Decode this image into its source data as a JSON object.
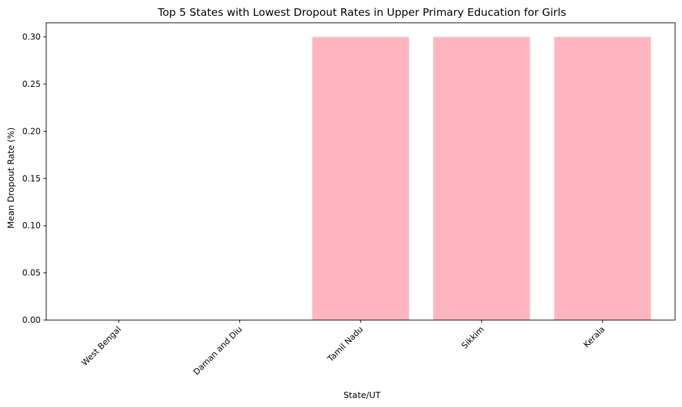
{
  "chart_data": {
    "type": "bar",
    "title": "Top 5 States with Lowest Dropout Rates in Upper Primary Education for Girls",
    "xlabel": "State/UT",
    "ylabel": "Mean Dropout Rate (%)",
    "categories": [
      "West Bengal",
      "Daman and Diu",
      "Tamil Nadu",
      "Sikkim",
      "Kerala"
    ],
    "values": [
      0.0,
      0.0,
      0.3,
      0.3,
      0.3
    ],
    "ylim": [
      0,
      0.315
    ],
    "yticks": [
      "0.00",
      "0.05",
      "0.10",
      "0.15",
      "0.20",
      "0.25",
      "0.30"
    ],
    "bar_color": "#ffb6c1",
    "grid": false,
    "legend": "none"
  }
}
